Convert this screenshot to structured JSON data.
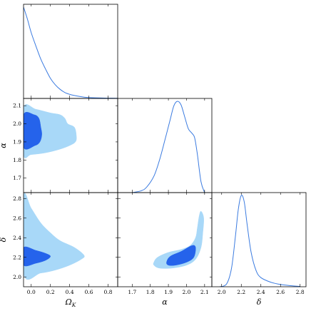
{
  "chart_data": {
    "type": "corner_plot",
    "parameters": [
      {
        "name": "Omega_K",
        "label": "Ω",
        "label_sub": "K",
        "range": [
          -0.08,
          0.9
        ],
        "ticks": [
          0.0,
          0.2,
          0.4,
          0.6,
          0.8
        ],
        "tick_labels": [
          "0.0",
          "0.2",
          "0.4",
          "0.6",
          "0.8"
        ]
      },
      {
        "name": "alpha",
        "label": "α",
        "range": [
          1.62,
          2.14
        ],
        "ticks": [
          1.7,
          1.8,
          1.9,
          2.0,
          2.1
        ],
        "tick_labels": [
          "1.7",
          "1.8",
          "1.9",
          "2.0",
          "2.1"
        ]
      },
      {
        "name": "delta",
        "label": "δ",
        "range": [
          1.9,
          2.86
        ],
        "ticks": [
          2.0,
          2.2,
          2.4,
          2.6,
          2.8
        ],
        "tick_labels": [
          "2.0",
          "2.2",
          "2.4",
          "2.6",
          "2.8"
        ]
      }
    ],
    "colors": {
      "line": "#3b7be0",
      "inner": "#2563eb",
      "outer": "#a8d8f8"
    },
    "marginals": {
      "Omega_K": [
        [
          -0.08,
          1.0
        ],
        [
          -0.04,
          0.87
        ],
        [
          0.0,
          0.72
        ],
        [
          0.05,
          0.57
        ],
        [
          0.1,
          0.43
        ],
        [
          0.15,
          0.32
        ],
        [
          0.2,
          0.22
        ],
        [
          0.25,
          0.15
        ],
        [
          0.3,
          0.1
        ],
        [
          0.35,
          0.065
        ],
        [
          0.4,
          0.045
        ],
        [
          0.45,
          0.032
        ],
        [
          0.5,
          0.022
        ],
        [
          0.55,
          0.014
        ],
        [
          0.6,
          0.01
        ],
        [
          0.7,
          0.006
        ],
        [
          0.8,
          0.003
        ],
        [
          0.9,
          0.002
        ]
      ],
      "alpha": [
        [
          1.7,
          0.0
        ],
        [
          1.75,
          0.02
        ],
        [
          1.78,
          0.06
        ],
        [
          1.82,
          0.18
        ],
        [
          1.85,
          0.35
        ],
        [
          1.88,
          0.57
        ],
        [
          1.91,
          0.8
        ],
        [
          1.93,
          0.95
        ],
        [
          1.95,
          1.0
        ],
        [
          1.97,
          0.96
        ],
        [
          1.99,
          0.83
        ],
        [
          2.01,
          0.7
        ],
        [
          2.03,
          0.65
        ],
        [
          2.045,
          0.6
        ],
        [
          2.06,
          0.42
        ],
        [
          2.08,
          0.12
        ],
        [
          2.1,
          0.0
        ]
      ],
      "delta": [
        [
          1.98,
          0.0
        ],
        [
          2.05,
          0.03
        ],
        [
          2.1,
          0.2
        ],
        [
          2.14,
          0.55
        ],
        [
          2.17,
          0.85
        ],
        [
          2.2,
          1.0
        ],
        [
          2.23,
          0.93
        ],
        [
          2.26,
          0.68
        ],
        [
          2.3,
          0.38
        ],
        [
          2.35,
          0.18
        ],
        [
          2.4,
          0.1
        ],
        [
          2.5,
          0.05
        ],
        [
          2.6,
          0.025
        ],
        [
          2.7,
          0.012
        ],
        [
          2.8,
          0.004
        ]
      ]
    },
    "contours": [
      {
        "x": "Omega_K",
        "y": "alpha",
        "outer": [
          [
            -0.08,
            2.09
          ],
          [
            0.05,
            2.08
          ],
          [
            0.2,
            2.06
          ],
          [
            0.3,
            2.05
          ],
          [
            0.35,
            2.03
          ],
          [
            0.38,
            2.0
          ],
          [
            0.45,
            1.98
          ],
          [
            0.47,
            1.93
          ],
          [
            0.46,
            1.9
          ],
          [
            0.4,
            1.88
          ],
          [
            0.3,
            1.86
          ],
          [
            0.15,
            1.84
          ],
          [
            0.0,
            1.83
          ],
          [
            -0.08,
            1.83
          ]
        ],
        "inner": [
          [
            -0.08,
            2.05
          ],
          [
            0.03,
            2.05
          ],
          [
            0.08,
            2.03
          ],
          [
            0.1,
            1.98
          ],
          [
            0.11,
            1.94
          ],
          [
            0.09,
            1.9
          ],
          [
            0.04,
            1.88
          ],
          [
            -0.08,
            1.87
          ]
        ]
      },
      {
        "x": "Omega_K",
        "y": "delta",
        "outer": [
          [
            -0.08,
            2.82
          ],
          [
            0.0,
            2.7
          ],
          [
            0.1,
            2.55
          ],
          [
            0.2,
            2.45
          ],
          [
            0.3,
            2.37
          ],
          [
            0.45,
            2.3
          ],
          [
            0.55,
            2.22
          ],
          [
            0.52,
            2.18
          ],
          [
            0.4,
            2.12
          ],
          [
            0.25,
            2.07
          ],
          [
            0.1,
            2.04
          ],
          [
            -0.08,
            2.03
          ]
        ],
        "inner": [
          [
            -0.08,
            2.3
          ],
          [
            0.05,
            2.27
          ],
          [
            0.15,
            2.24
          ],
          [
            0.2,
            2.21
          ],
          [
            0.15,
            2.17
          ],
          [
            0.05,
            2.14
          ],
          [
            -0.08,
            2.12
          ]
        ]
      },
      {
        "x": "alpha",
        "y": "delta",
        "outer": [
          [
            1.82,
            2.15
          ],
          [
            1.84,
            2.2
          ],
          [
            1.9,
            2.25
          ],
          [
            1.97,
            2.28
          ],
          [
            2.02,
            2.32
          ],
          [
            2.05,
            2.4
          ],
          [
            2.06,
            2.5
          ],
          [
            2.07,
            2.62
          ],
          [
            2.08,
            2.67
          ],
          [
            2.095,
            2.6
          ],
          [
            2.09,
            2.45
          ],
          [
            2.08,
            2.3
          ],
          [
            2.05,
            2.18
          ],
          [
            2.0,
            2.12
          ],
          [
            1.92,
            2.09
          ],
          [
            1.85,
            2.09
          ],
          [
            1.82,
            2.12
          ]
        ],
        "inner": [
          [
            1.89,
            2.15
          ],
          [
            1.91,
            2.21
          ],
          [
            1.97,
            2.26
          ],
          [
            2.03,
            2.32
          ],
          [
            2.05,
            2.3
          ],
          [
            2.04,
            2.2
          ],
          [
            2.0,
            2.15
          ],
          [
            1.94,
            2.12
          ],
          [
            1.9,
            2.12
          ]
        ]
      }
    ]
  }
}
